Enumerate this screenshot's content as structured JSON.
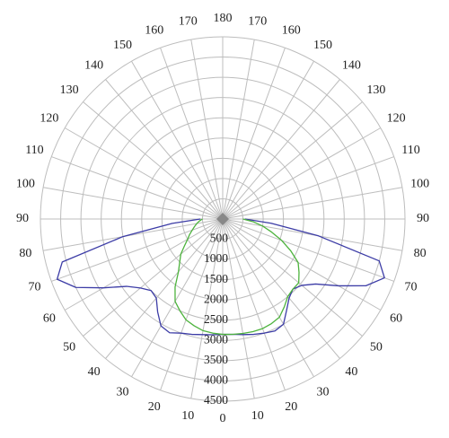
{
  "chart_data": {
    "type": "polar",
    "theta_ticks": [
      0,
      10,
      20,
      30,
      40,
      50,
      60,
      70,
      80,
      90,
      100,
      110,
      120,
      130,
      140,
      150,
      160,
      170,
      180
    ],
    "rlim": [
      0,
      4500
    ],
    "rticks": [
      500,
      1000,
      1500,
      2000,
      2500,
      3000,
      3500,
      4000,
      4500
    ],
    "grid": true,
    "x": [
      -90,
      -85,
      -80,
      -75,
      -70,
      -65,
      -60,
      -55,
      -50,
      -45,
      -40,
      -35,
      -30,
      -25,
      -20,
      -15,
      -10,
      -5,
      0,
      5,
      10,
      15,
      20,
      25,
      30,
      35,
      40,
      45,
      50,
      55,
      60,
      65,
      70,
      75,
      80,
      85,
      90
    ],
    "series": [
      {
        "color": "#3c3ca6",
        "values": [
          550,
          1250,
          2500,
          4100,
          4350,
          4000,
          3400,
          2900,
          2650,
          2500,
          2550,
          2800,
          3050,
          3100,
          3000,
          2950,
          2900,
          2870,
          2850,
          2860,
          2900,
          2950,
          3000,
          3050,
          3000,
          2750,
          2550,
          2450,
          2550,
          2800,
          3300,
          3900,
          4250,
          4000,
          2400,
          1200,
          550
        ]
      },
      {
        "color": "#4db33d",
        "values": [
          500,
          580,
          650,
          720,
          800,
          900,
          1000,
          1150,
          1350,
          1500,
          1700,
          2050,
          2350,
          2500,
          2650,
          2730,
          2800,
          2830,
          2850,
          2860,
          2870,
          2880,
          2880,
          2850,
          2800,
          2650,
          2500,
          2450,
          2450,
          2300,
          2150,
          1850,
          1550,
          1250,
          1000,
          750,
          500
        ]
      }
    ]
  }
}
